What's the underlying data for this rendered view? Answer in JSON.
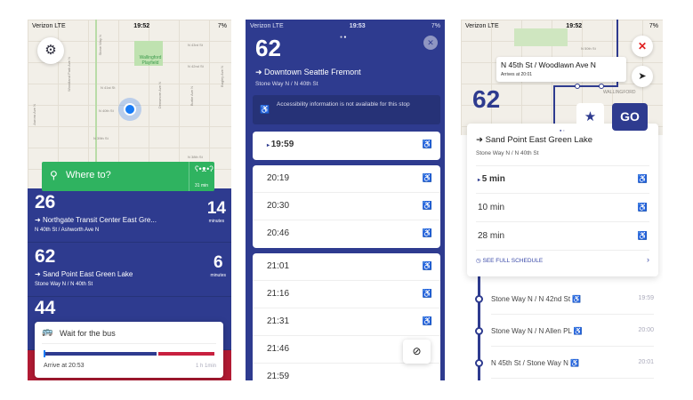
{
  "colors": {
    "brand_blue": "#2e3b8f",
    "green": "#2fb360",
    "red": "#b31b34",
    "close_red": "#e02020"
  },
  "screen1": {
    "status": {
      "carrier": "Verizon  LTE",
      "time": "19:52",
      "battery": "7%"
    },
    "map": {
      "park": "Wallingford Playfield",
      "streets": [
        "N 43rd St",
        "N 42nd St",
        "N 41st St",
        "N 40th St",
        "N 39th St",
        "N 38th St",
        "Stone Way N",
        "Aurora Ave N",
        "Woodland Park Ave N",
        "Densmore Ave N",
        "Burke Ave N",
        "Bagley Ave N"
      ]
    },
    "search": {
      "placeholder": "Where to?",
      "time": "31 min"
    },
    "departures": [
      {
        "route": "26",
        "destination": "Northgate Transit Center East Gre...",
        "stop": "N 40th St / Ashworth Ave N",
        "minutes": "14",
        "unit": "minutes"
      },
      {
        "route": "62",
        "destination": "Sand Point East Green Lake",
        "stop": "Stone Way N / N 40th St",
        "minutes": "6",
        "unit": "minutes"
      },
      {
        "route": "44"
      }
    ],
    "wait_card": {
      "title": "Wait for the bus",
      "arrive": "Arrive at 20:53",
      "duration": "1 h 1min",
      "progress": 0.02
    }
  },
  "screen2": {
    "status": {
      "carrier": "Verizon  LTE",
      "time": "19:53",
      "battery": "7%"
    },
    "route": "62",
    "destination": "Downtown Seattle Fremont",
    "stop": "Stone Way N / N 40th St",
    "notice": "Accessibility information is not available for this stop",
    "times_next": [
      "19:59"
    ],
    "times_group1": [
      "20:19",
      "20:30",
      "20:46"
    ],
    "times_group2": [
      "21:01",
      "21:16",
      "21:31",
      "21:46",
      "21:59"
    ]
  },
  "screen3": {
    "status": {
      "carrier": "Verizon  LTE",
      "time": "19:52",
      "battery": "7%"
    },
    "map": {
      "tooltip_title": "N 45th St / Woodlawn Ave N",
      "tooltip_sub": "Arrives at 20:01",
      "street": "N 50th St",
      "area": "WALLINGFORD"
    },
    "route": "62",
    "go_label": "GO",
    "destination": "Sand Point East Green Lake",
    "stop": "Stone Way N / N 40th St",
    "arrivals": [
      "5 min",
      "10 min",
      "28 min"
    ],
    "schedule_link": "SEE FULL SCHEDULE",
    "stops": [
      {
        "name": "Stone Way N / N 42nd St",
        "time": "19:59"
      },
      {
        "name": "Stone Way N / N Allen PL",
        "time": "20:00"
      },
      {
        "name": "N 45th St / Stone Way N",
        "time": "20:01"
      }
    ]
  }
}
